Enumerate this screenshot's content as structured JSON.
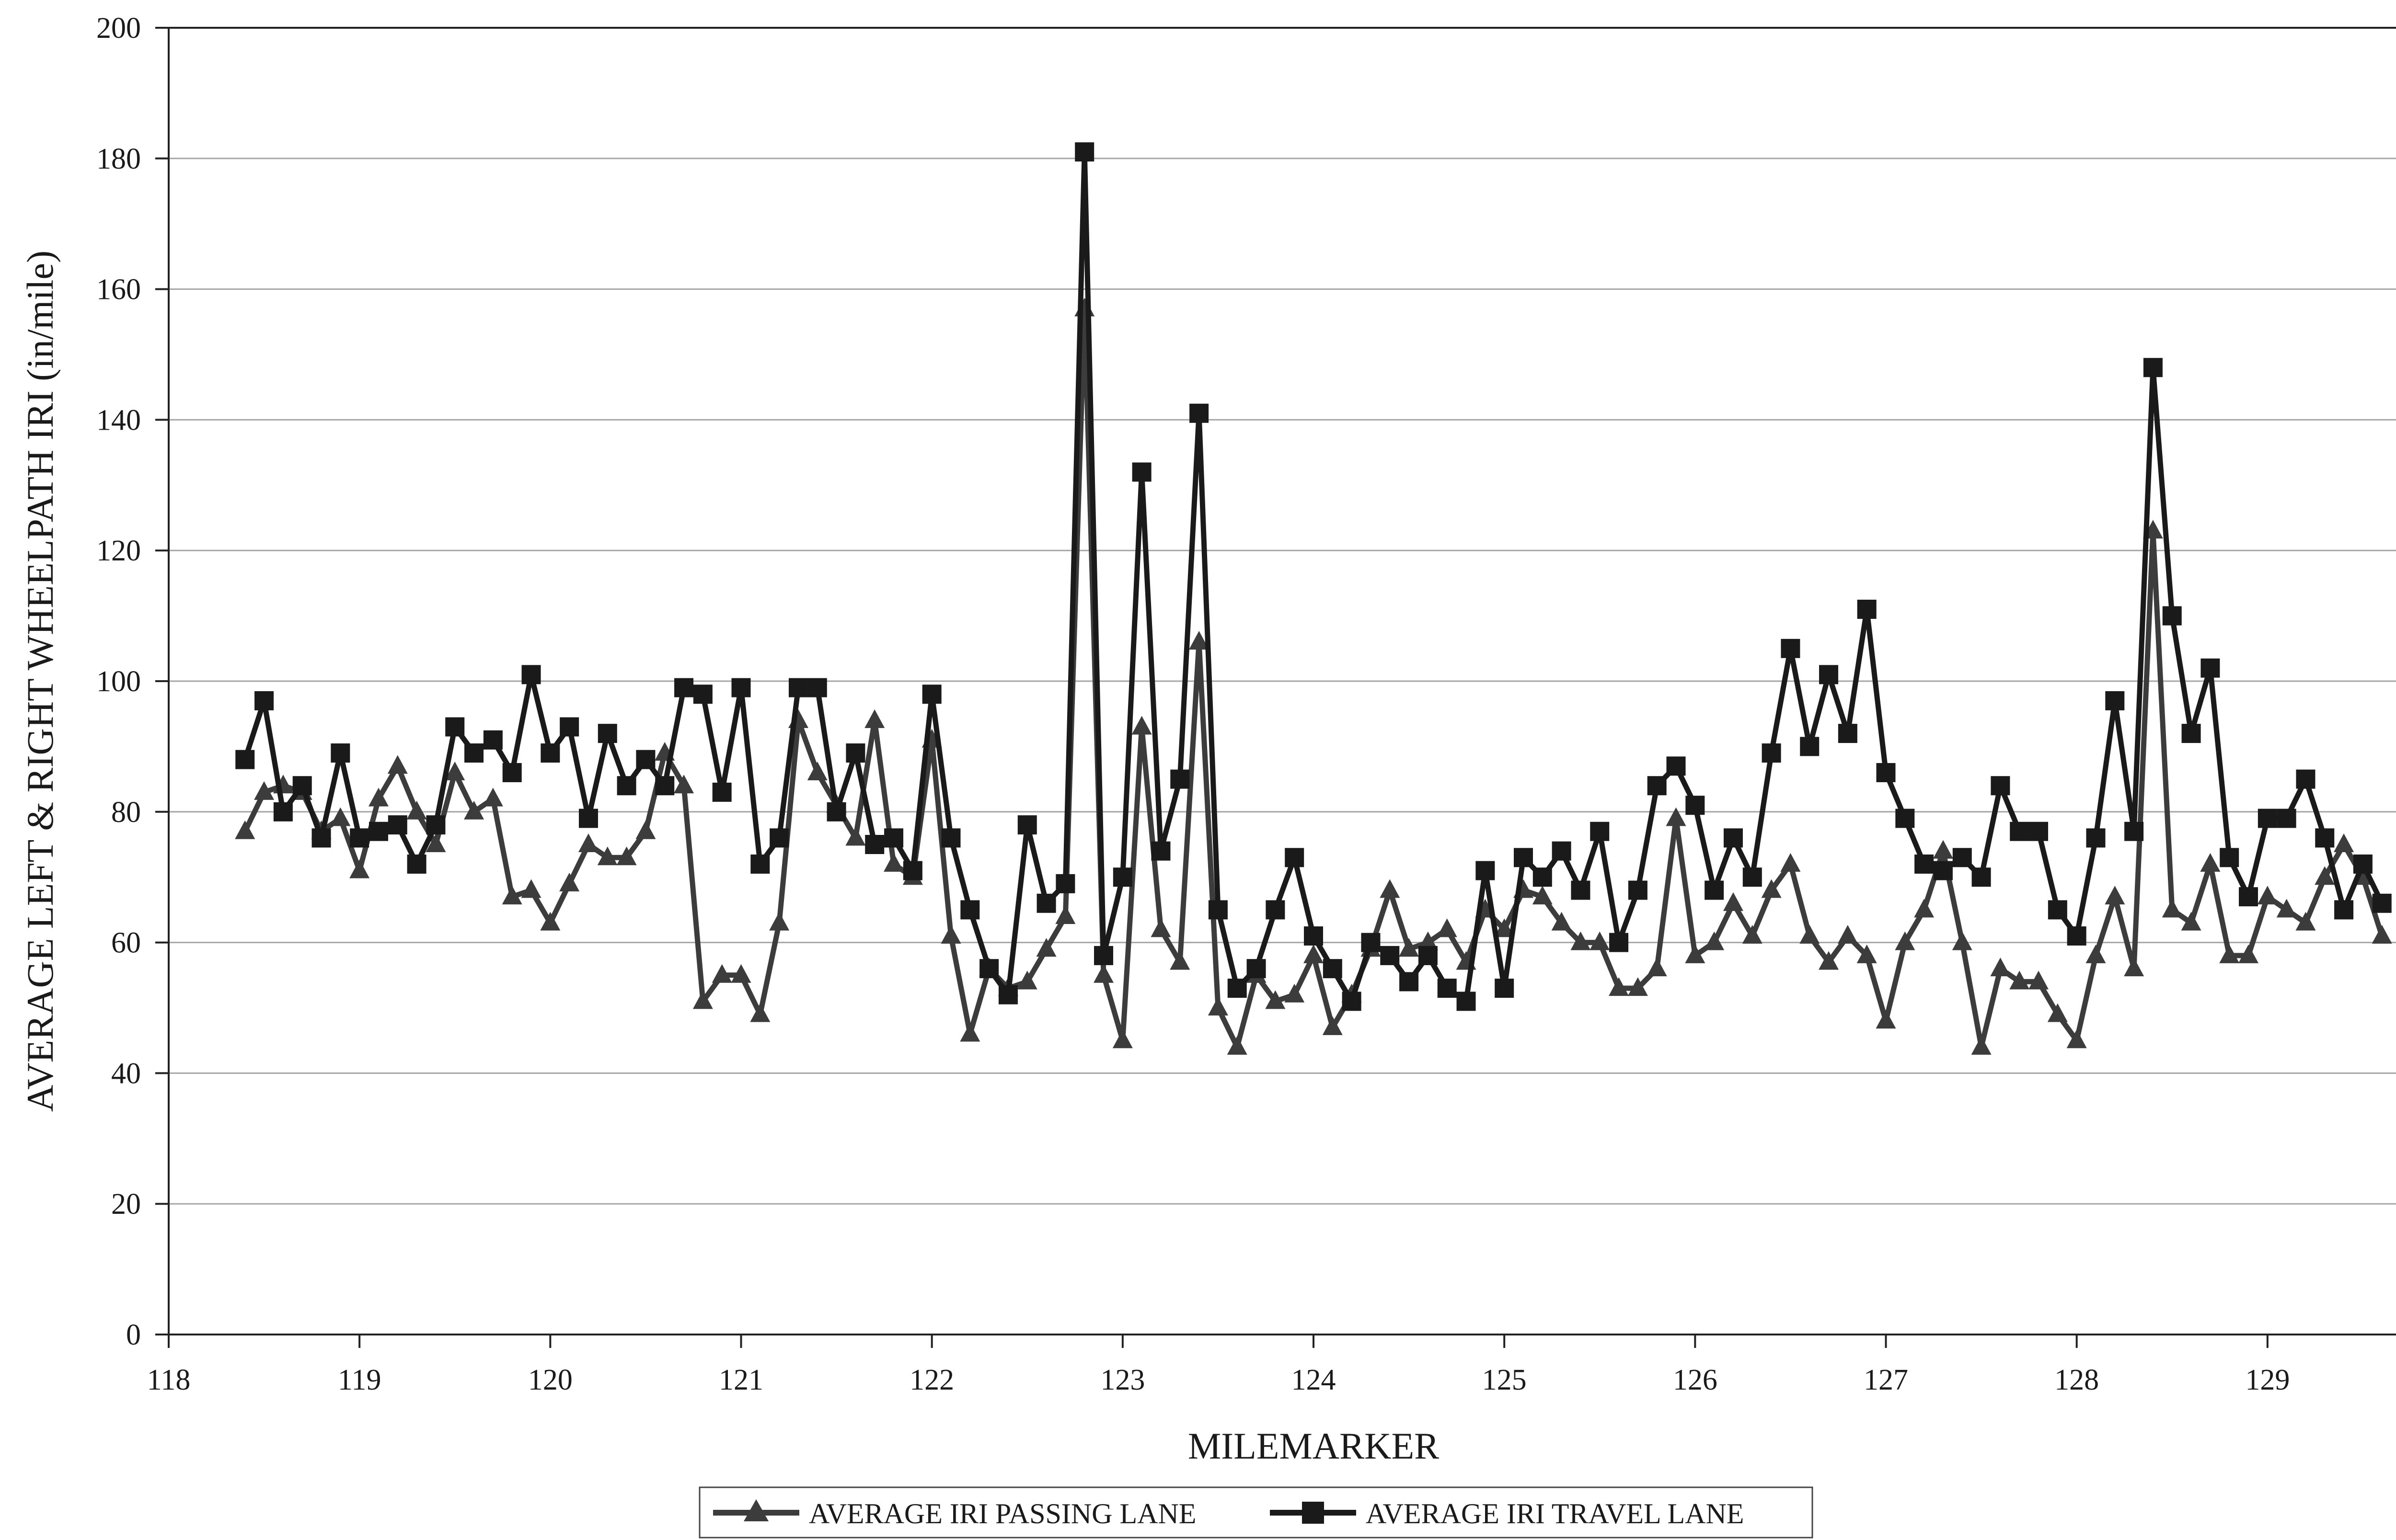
{
  "chart_data": {
    "type": "line",
    "title": "",
    "xlabel": "MILEMARKER",
    "ylabel": "AVERAGE LEFT & RIGHT WHEELPATH IRI (in/mile)",
    "xlim": [
      118,
      130
    ],
    "ylim": [
      0,
      200
    ],
    "xticks": [
      118,
      119,
      120,
      121,
      122,
      123,
      124,
      125,
      126,
      127,
      128,
      129,
      130
    ],
    "yticks": [
      0,
      20,
      40,
      60,
      80,
      100,
      120,
      140,
      160,
      180,
      200
    ],
    "grid": "horizontal",
    "legend_position": "bottom",
    "x": [
      118.4,
      118.5,
      118.6,
      118.7,
      118.8,
      118.9,
      119.0,
      119.1,
      119.2,
      119.3,
      119.4,
      119.5,
      119.6,
      119.7,
      119.8,
      119.9,
      120.0,
      120.1,
      120.2,
      120.3,
      120.4,
      120.5,
      120.6,
      120.7,
      120.8,
      120.9,
      121.0,
      121.1,
      121.2,
      121.3,
      121.4,
      121.5,
      121.6,
      121.7,
      121.8,
      121.9,
      122.0,
      122.1,
      122.2,
      122.3,
      122.4,
      122.5,
      122.6,
      122.7,
      122.8,
      122.9,
      123.0,
      123.1,
      123.2,
      123.3,
      123.4,
      123.5,
      123.6,
      123.7,
      123.8,
      123.9,
      124.0,
      124.1,
      124.2,
      124.3,
      124.4,
      124.5,
      124.6,
      124.7,
      124.8,
      124.9,
      125.0,
      125.1,
      125.2,
      125.3,
      125.4,
      125.5,
      125.6,
      125.7,
      125.8,
      125.9,
      126.0,
      126.1,
      126.2,
      126.3,
      126.4,
      126.5,
      126.6,
      126.7,
      126.8,
      126.9,
      127.0,
      127.1,
      127.2,
      127.3,
      127.4,
      127.5,
      127.6,
      127.7,
      127.8,
      127.9,
      128.0,
      128.1,
      128.2,
      128.3,
      128.4,
      128.5,
      128.6,
      128.7,
      128.8,
      128.9,
      129.0,
      129.1,
      129.2,
      129.3,
      129.4,
      129.5,
      129.6
    ],
    "series": [
      {
        "name": "AVERAGE IRI PASSING LANE",
        "marker": "triangle",
        "color": "#3c3c3c",
        "values": [
          77,
          83,
          84,
          83,
          77,
          79,
          71,
          82,
          87,
          80,
          75,
          86,
          80,
          82,
          67,
          68,
          63,
          69,
          75,
          73,
          73,
          77,
          89,
          84,
          51,
          55,
          55,
          49,
          63,
          94,
          86,
          81,
          76,
          94,
          72,
          70,
          91,
          61,
          46,
          56,
          53,
          54,
          59,
          64,
          157,
          55,
          45,
          93,
          62,
          57,
          106,
          50,
          44,
          55,
          51,
          52,
          58,
          47,
          52,
          59,
          68,
          59,
          60,
          62,
          57,
          65,
          62,
          68,
          67,
          63,
          60,
          60,
          53,
          53,
          56,
          79,
          58,
          60,
          66,
          61,
          68,
          72,
          61,
          57,
          61,
          58,
          48,
          60,
          65,
          74,
          60,
          44,
          56,
          54,
          54,
          49,
          45,
          58,
          67,
          56,
          123,
          65,
          63,
          72,
          58,
          58,
          67,
          65,
          63,
          70,
          75,
          70,
          61
        ]
      },
      {
        "name": "AVERAGE IRI TRAVEL LANE",
        "marker": "square",
        "color": "#1a1a1a",
        "values": [
          88,
          97,
          80,
          84,
          76,
          89,
          76,
          77,
          78,
          72,
          78,
          93,
          89,
          91,
          86,
          101,
          89,
          93,
          79,
          92,
          84,
          88,
          84,
          99,
          98,
          83,
          99,
          72,
          76,
          99,
          99,
          80,
          89,
          75,
          76,
          71,
          98,
          76,
          65,
          56,
          52,
          78,
          66,
          69,
          181,
          58,
          70,
          132,
          74,
          85,
          141,
          65,
          53,
          56,
          65,
          73,
          61,
          56,
          51,
          60,
          58,
          54,
          58,
          53,
          51,
          71,
          53,
          73,
          70,
          74,
          68,
          77,
          60,
          68,
          84,
          87,
          81,
          68,
          76,
          70,
          89,
          105,
          90,
          101,
          92,
          111,
          86,
          79,
          72,
          71,
          73,
          70,
          84,
          77,
          77,
          65,
          61,
          76,
          97,
          77,
          148,
          110,
          92,
          102,
          73,
          67,
          79,
          79,
          85,
          76,
          65,
          72,
          66
        ]
      }
    ]
  }
}
